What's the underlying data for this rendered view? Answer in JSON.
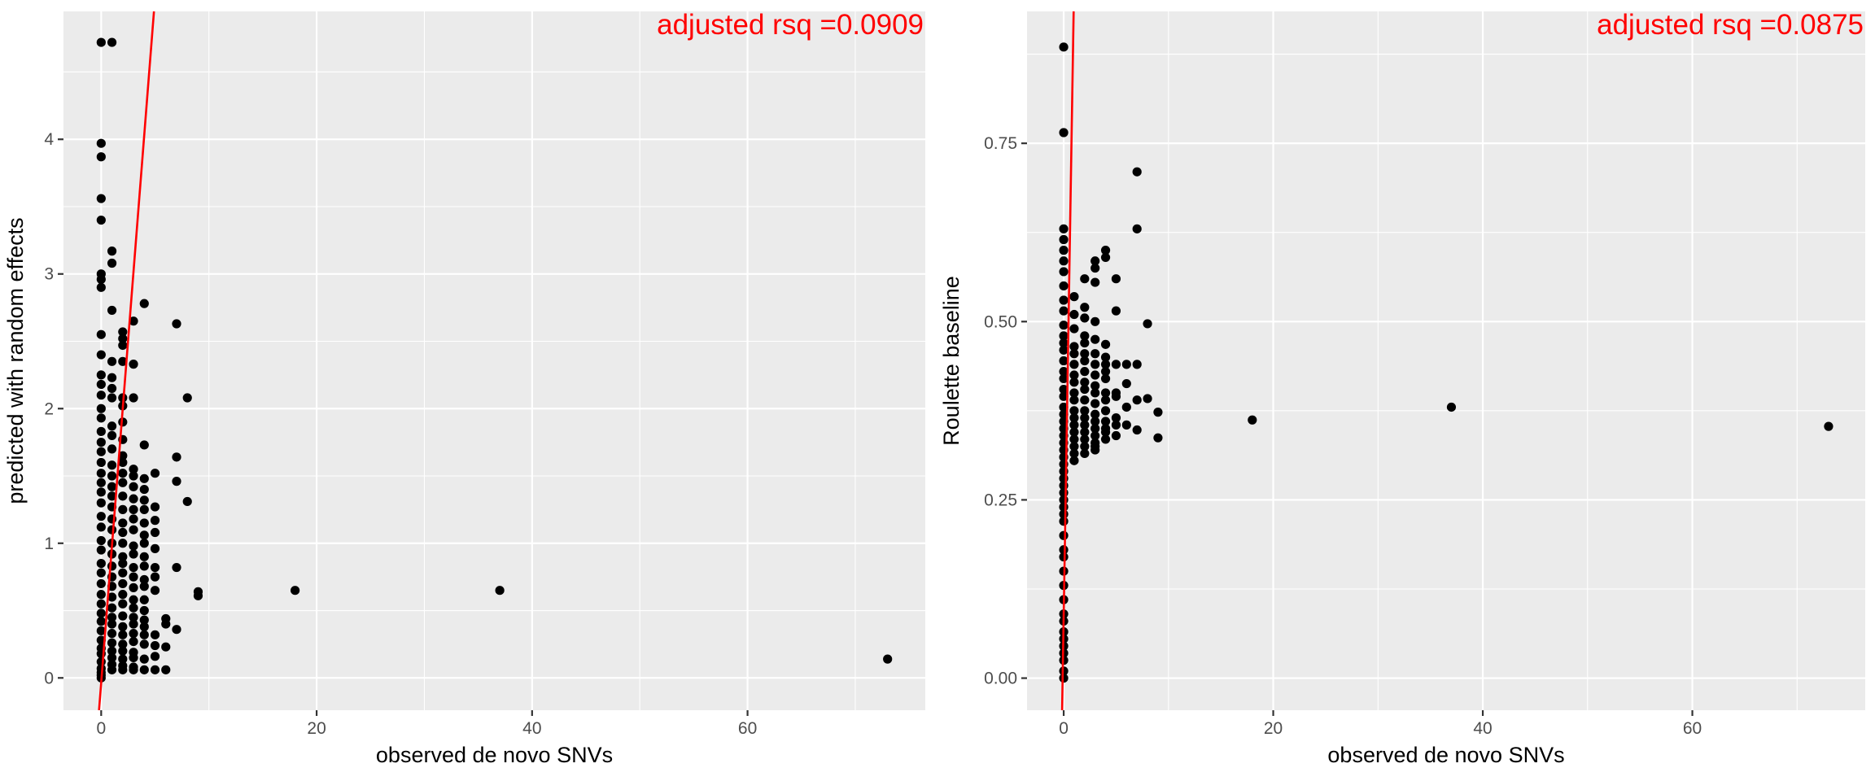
{
  "chart_data": [
    {
      "type": "scatter",
      "xlabel": "observed de novo SNVs",
      "ylabel": "predicted with random effects",
      "xlim": [
        -3.5,
        76.5
      ],
      "ylim": [
        -0.24,
        4.95
      ],
      "xticks": [
        0,
        20,
        40,
        60
      ],
      "yticks": [
        0,
        1,
        2,
        3,
        4
      ],
      "grid": true,
      "annotation": {
        "text": "adjusted rsq =0.0909",
        "color": "#ff0000",
        "position": "top-right"
      },
      "fit_line": {
        "color": "#ff0000",
        "points": [
          [
            -0.2,
            -0.24
          ],
          [
            4.9,
            4.95
          ]
        ]
      },
      "points": [
        [
          0,
          4.72
        ],
        [
          1,
          4.72
        ],
        [
          0,
          3.97
        ],
        [
          0,
          3.87
        ],
        [
          0,
          3.56
        ],
        [
          0,
          3.4
        ],
        [
          1,
          3.17
        ],
        [
          1,
          3.08
        ],
        [
          0,
          3.0
        ],
        [
          0,
          2.96
        ],
        [
          0,
          2.9
        ],
        [
          4,
          2.78
        ],
        [
          1,
          2.73
        ],
        [
          3,
          2.65
        ],
        [
          7,
          2.63
        ],
        [
          2,
          2.57
        ],
        [
          2,
          2.52
        ],
        [
          2,
          2.47
        ],
        [
          0,
          2.55
        ],
        [
          0,
          2.4
        ],
        [
          1,
          2.35
        ],
        [
          2,
          2.35
        ],
        [
          3,
          2.33
        ],
        [
          0,
          2.25
        ],
        [
          1,
          2.23
        ],
        [
          0,
          2.18
        ],
        [
          1,
          2.15
        ],
        [
          0,
          2.1
        ],
        [
          1,
          2.08
        ],
        [
          2,
          2.08
        ],
        [
          3,
          2.08
        ],
        [
          8,
          2.08
        ],
        [
          0,
          2.0
        ],
        [
          2,
          2.02
        ],
        [
          0,
          1.93
        ],
        [
          1,
          1.87
        ],
        [
          2,
          1.9
        ],
        [
          0,
          1.83
        ],
        [
          1,
          1.8
        ],
        [
          0,
          1.75
        ],
        [
          2,
          1.77
        ],
        [
          4,
          1.73
        ],
        [
          0,
          1.68
        ],
        [
          1,
          1.7
        ],
        [
          2,
          1.65
        ],
        [
          7,
          1.64
        ],
        [
          0,
          1.6
        ],
        [
          1,
          1.58
        ],
        [
          2,
          1.6
        ],
        [
          3,
          1.55
        ],
        [
          0,
          1.52
        ],
        [
          1,
          1.5
        ],
        [
          2,
          1.52
        ],
        [
          3,
          1.5
        ],
        [
          4,
          1.48
        ],
        [
          5,
          1.52
        ],
        [
          7,
          1.46
        ],
        [
          0,
          1.45
        ],
        [
          1,
          1.42
        ],
        [
          2,
          1.45
        ],
        [
          3,
          1.42
        ],
        [
          4,
          1.4
        ],
        [
          0,
          1.38
        ],
        [
          1,
          1.35
        ],
        [
          2,
          1.35
        ],
        [
          3,
          1.33
        ],
        [
          4,
          1.32
        ],
        [
          8,
          1.31
        ],
        [
          0,
          1.3
        ],
        [
          1,
          1.27
        ],
        [
          2,
          1.25
        ],
        [
          3,
          1.25
        ],
        [
          4,
          1.25
        ],
        [
          5,
          1.27
        ],
        [
          0,
          1.2
        ],
        [
          1,
          1.18
        ],
        [
          2,
          1.15
        ],
        [
          3,
          1.18
        ],
        [
          4,
          1.15
        ],
        [
          5,
          1.17
        ],
        [
          0,
          1.12
        ],
        [
          1,
          1.1
        ],
        [
          2,
          1.08
        ],
        [
          3,
          1.1
        ],
        [
          4,
          1.06
        ],
        [
          5,
          1.08
        ],
        [
          0,
          1.02
        ],
        [
          1,
          1.0
        ],
        [
          2,
          1.0
        ],
        [
          3,
          0.98
        ],
        [
          4,
          1.0
        ],
        [
          5,
          0.96
        ],
        [
          0,
          0.95
        ],
        [
          1,
          0.92
        ],
        [
          2,
          0.9
        ],
        [
          3,
          0.92
        ],
        [
          4,
          0.9
        ],
        [
          0,
          0.85
        ],
        [
          1,
          0.83
        ],
        [
          2,
          0.85
        ],
        [
          3,
          0.82
        ],
        [
          4,
          0.83
        ],
        [
          5,
          0.82
        ],
        [
          7,
          0.82
        ],
        [
          0,
          0.78
        ],
        [
          1,
          0.75
        ],
        [
          2,
          0.78
        ],
        [
          3,
          0.75
        ],
        [
          4,
          0.73
        ],
        [
          5,
          0.75
        ],
        [
          0,
          0.7
        ],
        [
          1,
          0.68
        ],
        [
          2,
          0.7
        ],
        [
          3,
          0.67
        ],
        [
          4,
          0.68
        ],
        [
          5,
          0.65
        ],
        [
          9,
          0.64
        ],
        [
          9,
          0.61
        ],
        [
          18,
          0.65
        ],
        [
          37,
          0.65
        ],
        [
          0,
          0.62
        ],
        [
          1,
          0.6
        ],
        [
          2,
          0.62
        ],
        [
          3,
          0.58
        ],
        [
          4,
          0.58
        ],
        [
          0,
          0.55
        ],
        [
          1,
          0.52
        ],
        [
          2,
          0.55
        ],
        [
          3,
          0.52
        ],
        [
          4,
          0.5
        ],
        [
          0,
          0.48
        ],
        [
          1,
          0.45
        ],
        [
          2,
          0.46
        ],
        [
          3,
          0.45
        ],
        [
          4,
          0.43
        ],
        [
          6,
          0.44
        ],
        [
          0,
          0.42
        ],
        [
          1,
          0.4
        ],
        [
          2,
          0.38
        ],
        [
          3,
          0.4
        ],
        [
          4,
          0.38
        ],
        [
          6,
          0.4
        ],
        [
          7,
          0.36
        ],
        [
          0,
          0.35
        ],
        [
          1,
          0.33
        ],
        [
          2,
          0.32
        ],
        [
          3,
          0.33
        ],
        [
          4,
          0.32
        ],
        [
          5,
          0.32
        ],
        [
          0,
          0.28
        ],
        [
          1,
          0.26
        ],
        [
          2,
          0.25
        ],
        [
          3,
          0.27
        ],
        [
          4,
          0.25
        ],
        [
          0,
          0.22
        ],
        [
          1,
          0.2
        ],
        [
          2,
          0.2
        ],
        [
          3,
          0.19
        ],
        [
          5,
          0.24
        ],
        [
          6,
          0.23
        ],
        [
          0,
          0.18
        ],
        [
          1,
          0.15
        ],
        [
          2,
          0.14
        ],
        [
          3,
          0.15
        ],
        [
          4,
          0.14
        ],
        [
          5,
          0.16
        ],
        [
          0,
          0.12
        ],
        [
          1,
          0.1
        ],
        [
          2,
          0.09
        ],
        [
          3,
          0.08
        ],
        [
          0,
          0.07
        ],
        [
          1,
          0.06
        ],
        [
          2,
          0.06
        ],
        [
          3,
          0.06
        ],
        [
          4,
          0.06
        ],
        [
          5,
          0.06
        ],
        [
          6,
          0.06
        ],
        [
          0,
          0.04
        ],
        [
          0,
          0.02
        ],
        [
          0,
          0.0
        ],
        [
          73,
          0.14
        ]
      ]
    },
    {
      "type": "scatter",
      "xlabel": "observed de novo SNVs",
      "ylabel": "Roulette baseline",
      "xlim": [
        -3.5,
        76.5
      ],
      "ylim": [
        -0.045,
        0.935
      ],
      "xticks": [
        0,
        20,
        40,
        60
      ],
      "yticks": [
        0.0,
        0.25,
        0.5,
        0.75
      ],
      "ytick_labels": [
        "0.00",
        "0.25",
        "0.50",
        "0.75"
      ],
      "grid": true,
      "annotation": {
        "text": "adjusted rsq =0.0875",
        "color": "#ff0000",
        "position": "top-right"
      },
      "fit_line": {
        "color": "#ff0000",
        "points": [
          [
            -0.15,
            -0.045
          ],
          [
            0.95,
            0.935
          ]
        ]
      },
      "points": [
        [
          0,
          0.885
        ],
        [
          0,
          0.765
        ],
        [
          7,
          0.71
        ],
        [
          0,
          0.63
        ],
        [
          7,
          0.63
        ],
        [
          0,
          0.615
        ],
        [
          0,
          0.6
        ],
        [
          4,
          0.6
        ],
        [
          0,
          0.585
        ],
        [
          3,
          0.585
        ],
        [
          4,
          0.59
        ],
        [
          3,
          0.575
        ],
        [
          0,
          0.57
        ],
        [
          2,
          0.56
        ],
        [
          3,
          0.555
        ],
        [
          5,
          0.56
        ],
        [
          0,
          0.55
        ],
        [
          1,
          0.535
        ],
        [
          0,
          0.53
        ],
        [
          2,
          0.52
        ],
        [
          0,
          0.515
        ],
        [
          5,
          0.515
        ],
        [
          1,
          0.51
        ],
        [
          2,
          0.505
        ],
        [
          3,
          0.5
        ],
        [
          8,
          0.497
        ],
        [
          0,
          0.495
        ],
        [
          1,
          0.49
        ],
        [
          0,
          0.48
        ],
        [
          2,
          0.48
        ],
        [
          3,
          0.475
        ],
        [
          0,
          0.47
        ],
        [
          1,
          0.465
        ],
        [
          2,
          0.47
        ],
        [
          4,
          0.468
        ],
        [
          0,
          0.46
        ],
        [
          1,
          0.455
        ],
        [
          2,
          0.455
        ],
        [
          3,
          0.455
        ],
        [
          4,
          0.45
        ],
        [
          0,
          0.445
        ],
        [
          1,
          0.44
        ],
        [
          2,
          0.445
        ],
        [
          3,
          0.44
        ],
        [
          4,
          0.44
        ],
        [
          5,
          0.44
        ],
        [
          6,
          0.44
        ],
        [
          7,
          0.44
        ],
        [
          0,
          0.43
        ],
        [
          1,
          0.425
        ],
        [
          2,
          0.43
        ],
        [
          3,
          0.425
        ],
        [
          4,
          0.43
        ],
        [
          0,
          0.42
        ],
        [
          1,
          0.415
        ],
        [
          2,
          0.415
        ],
        [
          3,
          0.41
        ],
        [
          4,
          0.42
        ],
        [
          6,
          0.413
        ],
        [
          0,
          0.405
        ],
        [
          1,
          0.4
        ],
        [
          2,
          0.405
        ],
        [
          3,
          0.4
        ],
        [
          4,
          0.4
        ],
        [
          5,
          0.4
        ],
        [
          7,
          0.39
        ],
        [
          8,
          0.392
        ],
        [
          0,
          0.395
        ],
        [
          1,
          0.39
        ],
        [
          2,
          0.39
        ],
        [
          3,
          0.385
        ],
        [
          4,
          0.39
        ],
        [
          5,
          0.395
        ],
        [
          6,
          0.38
        ],
        [
          37,
          0.38
        ],
        [
          0,
          0.38
        ],
        [
          1,
          0.375
        ],
        [
          2,
          0.375
        ],
        [
          3,
          0.37
        ],
        [
          4,
          0.375
        ],
        [
          9,
          0.373
        ],
        [
          0,
          0.37
        ],
        [
          1,
          0.365
        ],
        [
          2,
          0.365
        ],
        [
          3,
          0.36
        ],
        [
          4,
          0.36
        ],
        [
          5,
          0.365
        ],
        [
          18,
          0.362
        ],
        [
          0,
          0.36
        ],
        [
          1,
          0.355
        ],
        [
          2,
          0.355
        ],
        [
          3,
          0.35
        ],
        [
          4,
          0.35
        ],
        [
          5,
          0.355
        ],
        [
          6,
          0.355
        ],
        [
          73,
          0.353
        ],
        [
          0,
          0.35
        ],
        [
          1,
          0.345
        ],
        [
          2,
          0.345
        ],
        [
          3,
          0.34
        ],
        [
          4,
          0.345
        ],
        [
          7,
          0.348
        ],
        [
          9,
          0.337
        ],
        [
          0,
          0.34
        ],
        [
          1,
          0.335
        ],
        [
          2,
          0.335
        ],
        [
          3,
          0.33
        ],
        [
          4,
          0.335
        ],
        [
          5,
          0.34
        ],
        [
          0,
          0.33
        ],
        [
          1,
          0.325
        ],
        [
          2,
          0.325
        ],
        [
          3,
          0.325
        ],
        [
          0,
          0.32
        ],
        [
          1,
          0.315
        ],
        [
          2,
          0.315
        ],
        [
          3,
          0.32
        ],
        [
          0,
          0.31
        ],
        [
          1,
          0.305
        ],
        [
          0,
          0.3
        ],
        [
          0,
          0.29
        ],
        [
          0,
          0.28
        ],
        [
          0,
          0.27
        ],
        [
          0,
          0.26
        ],
        [
          0,
          0.25
        ],
        [
          0,
          0.24
        ],
        [
          0,
          0.23
        ],
        [
          0,
          0.22
        ],
        [
          0,
          0.2
        ],
        [
          0,
          0.18
        ],
        [
          0,
          0.17
        ],
        [
          0,
          0.15
        ],
        [
          0,
          0.13
        ],
        [
          0,
          0.11
        ],
        [
          0,
          0.09
        ],
        [
          0,
          0.08
        ],
        [
          0,
          0.065
        ],
        [
          0,
          0.055
        ],
        [
          0,
          0.045
        ],
        [
          0,
          0.035
        ],
        [
          0,
          0.025
        ],
        [
          0,
          0.01
        ],
        [
          0,
          0.0
        ]
      ]
    }
  ]
}
